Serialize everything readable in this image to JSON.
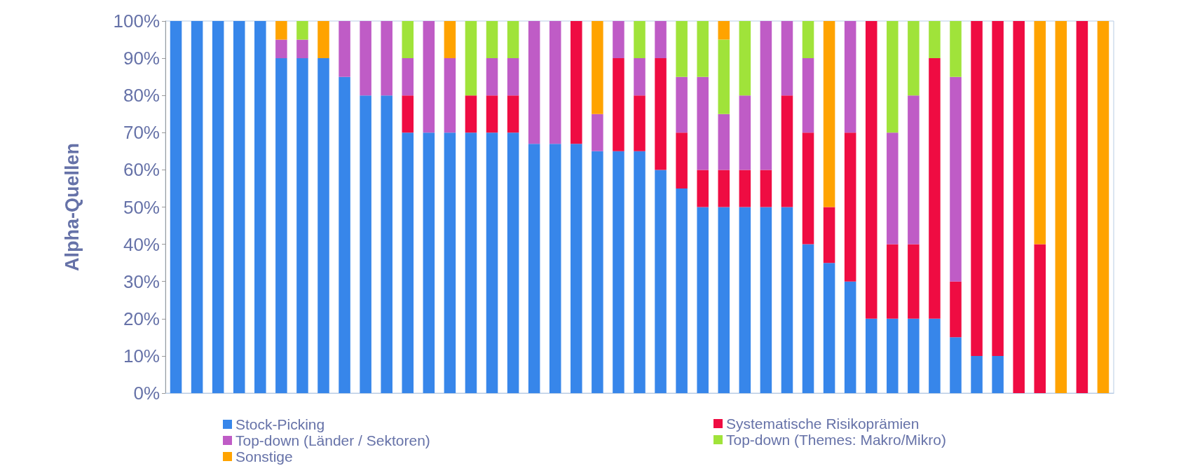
{
  "chart_data": {
    "type": "bar",
    "stacked": true,
    "ylabel": "Alpha-Quellen",
    "categories": [
      null,
      null,
      null,
      null,
      null,
      null,
      null,
      null,
      null,
      null,
      null,
      null,
      null,
      null,
      null,
      null,
      null,
      null,
      null,
      null,
      null,
      null,
      null,
      null,
      null,
      null,
      null,
      null,
      null,
      null,
      null,
      null,
      null,
      null,
      null,
      null,
      null,
      null,
      null,
      null,
      null,
      null,
      null,
      null,
      null
    ],
    "ylim": [
      0,
      100
    ],
    "yticks": [
      {
        "value": 0,
        "label": "0%"
      },
      {
        "value": 10,
        "label": "10%"
      },
      {
        "value": 20,
        "label": "20%"
      },
      {
        "value": 30,
        "label": "30%"
      },
      {
        "value": 40,
        "label": "40%"
      },
      {
        "value": 50,
        "label": "50%"
      },
      {
        "value": 60,
        "label": "60%"
      },
      {
        "value": 70,
        "label": "70%"
      },
      {
        "value": 80,
        "label": "80%"
      },
      {
        "value": 90,
        "label": "90%"
      },
      {
        "value": 100,
        "label": "100%"
      }
    ],
    "grid": false,
    "legend": "bottom",
    "series": [
      {
        "name": "Stock-Picking",
        "color": "#3786ea",
        "values": [
          100,
          100,
          100,
          100,
          100,
          90,
          90,
          90,
          85,
          80,
          80,
          70,
          70,
          70,
          70,
          70,
          70,
          67,
          67,
          67,
          65,
          65,
          65,
          60,
          55,
          50,
          50,
          50,
          50,
          50,
          40,
          35,
          30,
          20,
          20,
          20,
          20,
          15,
          10,
          10,
          0,
          0,
          0,
          0,
          0
        ]
      },
      {
        "name": "Systematische Risikoprämien",
        "color": "#ef0c42",
        "values": [
          0,
          0,
          0,
          0,
          0,
          0,
          0,
          0,
          0,
          0,
          0,
          10,
          0,
          0,
          10,
          10,
          10,
          0,
          0,
          33,
          0,
          25,
          15,
          30,
          15,
          10,
          10,
          10,
          10,
          30,
          30,
          15,
          40,
          80,
          20,
          20,
          70,
          15,
          90,
          90,
          100,
          40,
          0,
          100,
          0
        ]
      },
      {
        "name": "Top-down (Länder / Sektoren)",
        "color": "#bf5cc6",
        "values": [
          0,
          0,
          0,
          0,
          0,
          5,
          5,
          0,
          15,
          20,
          20,
          10,
          30,
          20,
          0,
          10,
          10,
          33,
          33,
          0,
          10,
          10,
          10,
          10,
          15,
          25,
          15,
          20,
          40,
          20,
          20,
          0,
          30,
          0,
          30,
          40,
          0,
          55,
          0,
          0,
          0,
          0,
          0,
          0,
          0
        ]
      },
      {
        "name": "Top-down (Themes: Makro/Mikro)",
        "color": "#a0e33a",
        "values": [
          0,
          0,
          0,
          0,
          0,
          0,
          5,
          0,
          0,
          0,
          0,
          10,
          0,
          0,
          20,
          10,
          10,
          0,
          0,
          0,
          0,
          0,
          10,
          0,
          15,
          15,
          20,
          20,
          0,
          0,
          10,
          0,
          0,
          0,
          30,
          20,
          10,
          15,
          0,
          0,
          0,
          0,
          0,
          0,
          0
        ]
      },
      {
        "name": "Sonstige",
        "color": "#ffa300",
        "values": [
          0,
          0,
          0,
          0,
          0,
          5,
          0,
          10,
          0,
          0,
          0,
          0,
          0,
          10,
          0,
          0,
          0,
          0,
          0,
          0,
          25,
          0,
          0,
          0,
          0,
          0,
          5,
          0,
          0,
          0,
          0,
          50,
          0,
          0,
          0,
          0,
          0,
          0,
          0,
          0,
          0,
          60,
          100,
          0,
          100
        ]
      }
    ]
  }
}
